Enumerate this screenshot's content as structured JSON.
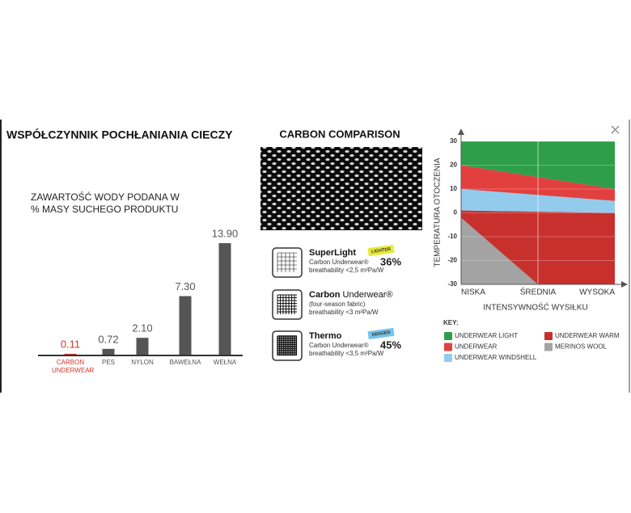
{
  "chart_data": [
    {
      "type": "bar",
      "title": "WSPÓŁCZYNNIK POCHŁANIANIA CIECZY",
      "subtitle": [
        "ZAWARTOŚĆ WODY PODANA W",
        "% MASY SUCHEGO PRODUKTU"
      ],
      "categories": [
        "CARBON UNDERWEAR",
        "PES",
        "NYLON",
        "BAWEŁNA",
        "WEŁNA"
      ],
      "values": [
        0.11,
        0.72,
        2.1,
        7.3,
        13.9
      ],
      "value_labels": [
        "0.11",
        "0.72",
        "2.10",
        "7.30",
        "13.90"
      ],
      "colors": [
        "#d9342b",
        "#555555",
        "#555555",
        "#555555",
        "#555555"
      ]
    },
    {
      "type": "range-area",
      "ylabel": "TEMPERATURA OTOCZENIA",
      "xlabel": "INTENSYWNOŚĆ WYSIŁKU",
      "categories": [
        "NISKA",
        "ŚREDNIA",
        "WYSOKA"
      ],
      "ylim": [
        -30,
        30
      ],
      "yticks": [
        30,
        20,
        10,
        0,
        -10,
        -20,
        -30
      ],
      "grid": true,
      "legend_title": "KEY:",
      "series": [
        {
          "name": "UNDERWEAR LIGHT",
          "color": "#2f9e4b",
          "high": [
            30,
            30,
            30
          ],
          "low": [
            20,
            15,
            10
          ]
        },
        {
          "name": "UNDERWEAR WARM",
          "color": "#c8302e",
          "high": [
            1,
            0.5,
            0
          ],
          "low": [
            -30,
            -30,
            -30
          ]
        },
        {
          "name": "UNDERWEAR",
          "color": "#e2403f",
          "high": [
            20,
            15,
            10
          ],
          "low": [
            10,
            7.5,
            5
          ]
        },
        {
          "name": "MERINOS WOOL",
          "color": "#a3a3a3",
          "high": [
            -2,
            -30,
            null
          ],
          "low": [
            -30,
            -30,
            null
          ]
        },
        {
          "name": "UNDERWEAR WINDSHELL",
          "color": "#93cbec",
          "high": [
            10,
            7.5,
            5
          ],
          "low": [
            1,
            0.5,
            0
          ]
        }
      ]
    }
  ],
  "comparison": {
    "title": "CARBON COMPARISON",
    "items": [
      {
        "name_bold": "SuperLight",
        "name_rest": "",
        "lines": [
          "Carbon Underwear®",
          "breathability <2,5 m²Pa/W"
        ],
        "badge": "LIGHTER",
        "badge_color": "#e6e93c",
        "percent": "36%"
      },
      {
        "name_bold": "Carbon",
        "name_rest": " Underwear®",
        "lines": [
          "(four-season fabric)",
          "breathability <3 m²Pa/W"
        ]
      },
      {
        "name_bold": "Thermo",
        "name_rest": "",
        "lines": [
          "Carbon Underwear®",
          "breathability <3,5 m²Pa/W"
        ],
        "badge": "DENSER",
        "badge_color": "#74c4ea",
        "percent": "45%"
      }
    ]
  }
}
